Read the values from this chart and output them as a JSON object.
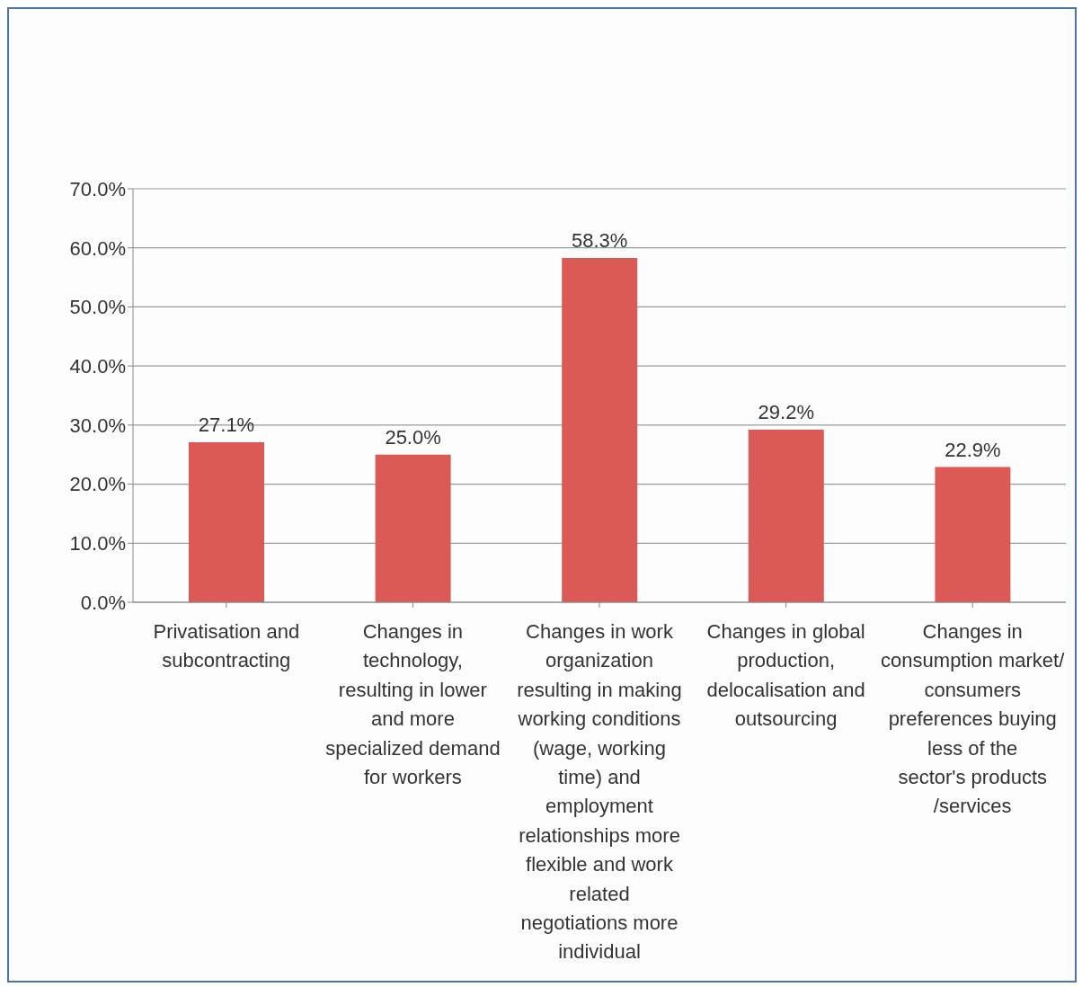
{
  "chart_data": {
    "type": "bar",
    "categories": [
      "Privatisation and subcontracting",
      "Changes in technology, resulting in  lower and more specialized demand for workers",
      "Changes in work organization resulting in making working conditions (wage, working time) and employment relationships more flexible and work related negotiations more individual",
      "Changes in global production, delocalisation and outsourcing",
      "Changes in consumption market/ consumers preferences buying less of the sector's products /services"
    ],
    "values": [
      27.1,
      25.0,
      58.3,
      29.2,
      22.9
    ],
    "value_labels": [
      "27.1%",
      "25.0%",
      "58.3%",
      "29.2%",
      "22.9%"
    ],
    "color": "#dc5a55",
    "ylim": [
      0,
      70
    ],
    "yticks": [
      {
        "value": 0,
        "label": "0.0%"
      },
      {
        "value": 10,
        "label": "10.0%"
      },
      {
        "value": 20,
        "label": "20.0%"
      },
      {
        "value": 30,
        "label": "30.0%"
      },
      {
        "value": 40,
        "label": "40.0%"
      },
      {
        "value": 50,
        "label": "50.0%"
      },
      {
        "value": 60,
        "label": "60.0%"
      },
      {
        "value": 70,
        "label": "70.0%"
      }
    ],
    "grid": "y",
    "legend": false
  }
}
